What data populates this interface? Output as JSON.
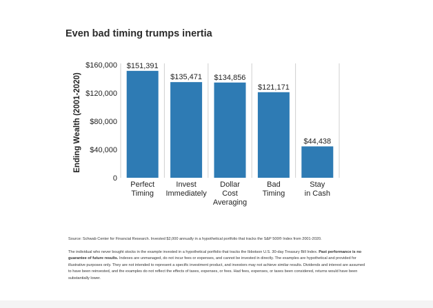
{
  "chart_data": {
    "type": "bar",
    "title": "Even bad timing trumps inertia",
    "ylabel": "Ending Wealth (2001-2020)",
    "xlabel": "",
    "ylim": [
      0,
      160000
    ],
    "yticks": [
      0,
      40000,
      80000,
      120000,
      160000
    ],
    "ytick_labels": [
      "0",
      "$40,000",
      "$80,000",
      "$120,000",
      "$160,000"
    ],
    "categories": [
      [
        "Perfect",
        "Timing"
      ],
      [
        "Invest",
        "Immediately"
      ],
      [
        "Dollar",
        "Cost",
        "Averaging"
      ],
      [
        "Bad",
        "Timing"
      ],
      [
        "Stay",
        "in Cash"
      ]
    ],
    "values": [
      151391,
      135471,
      134856,
      121171,
      44438
    ],
    "value_labels": [
      "$151,391",
      "$135,471",
      "$134,856",
      "$121,171",
      "$44,438"
    ],
    "bar_color": "#2e7bb4",
    "grid": false
  },
  "footnotes": {
    "source": "Source: Schwab Center for Financial Research. Invested $2,000 annually in a hypothetical portfolio that tracks the S&P 500® Index from 2001-2020.",
    "body_intro": "The individual who never bought stocks in the example invested in a hypothetical portfolio that tracks the Ibbotson U.S. 30-day Treasury Bill Index.",
    "bold_text": "Past performance is no guarantee of future results.",
    "body_rest": "Indexes are unmanaged, do not incur fees or expenses, and cannot be invested in directly. The examples are hypothetical and provided for illustrative purposes only. They are not intended to represent a specific investment product, and investors may not achieve similar results. Dividends and interest are assumed to have been reinvested, and the examples do not reflect the effects of taxes, expenses, or fees. Had fees, expenses, or taxes been considered, returns would have been substantially lower."
  }
}
